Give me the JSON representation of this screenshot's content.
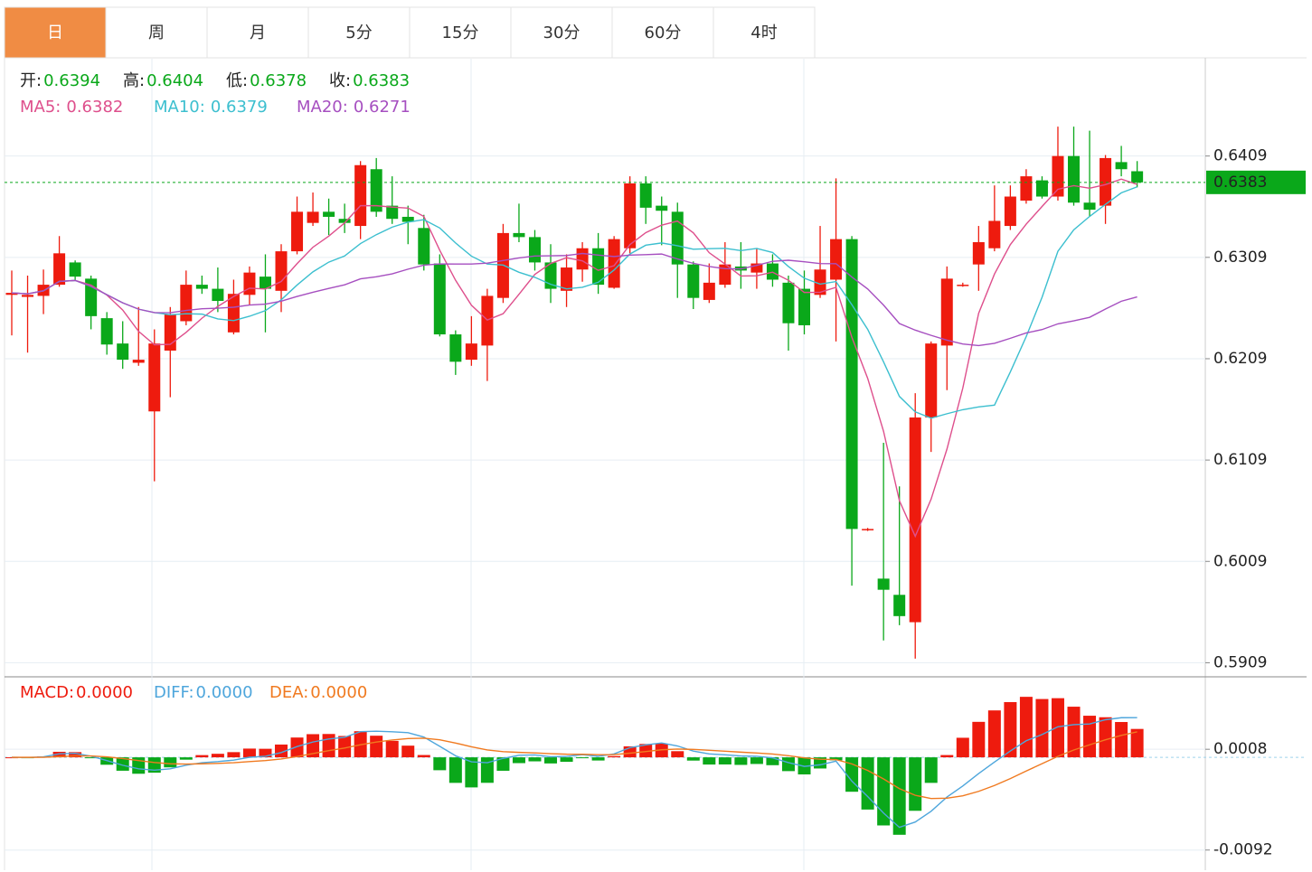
{
  "chart_data": {
    "type": "candlestick",
    "tabs": [
      "日",
      "周",
      "月",
      "5分",
      "15分",
      "30分",
      "60分",
      "4时"
    ],
    "ohlc_labels": [
      "开:",
      "高:",
      "低:",
      "收:"
    ],
    "up_color": "#ee1b0e",
    "down_color": "#0aa81a",
    "open": [
      0.6272,
      0.627,
      0.6271,
      0.6282,
      0.6304,
      0.6288,
      0.6249,
      0.6224,
      0.6205,
      0.6157,
      0.6217,
      0.6246,
      0.6282,
      0.6278,
      0.6235,
      0.6272,
      0.629,
      0.6276,
      0.6315,
      0.6343,
      0.6354,
      0.6347,
      0.634,
      0.6396,
      0.636,
      0.6349,
      0.6338,
      0.6303,
      0.6233,
      0.6208,
      0.6222,
      0.6269,
      0.6333,
      0.6329,
      0.6304,
      0.6276,
      0.6297,
      0.6318,
      0.6279,
      0.6318,
      0.6382,
      0.636,
      0.6354,
      0.6302,
      0.6267,
      0.6282,
      0.63,
      0.6294,
      0.6303,
      0.6284,
      0.6278,
      0.6272,
      0.6287,
      0.6327,
      0.604,
      0.5992,
      0.5976,
      0.5949,
      0.6151,
      0.6222,
      0.6281,
      0.6302,
      0.6318,
      0.634,
      0.6365,
      0.6385,
      0.6369,
      0.6409,
      0.6363,
      0.636,
      0.6403,
      0.6394
    ],
    "high": [
      0.6296,
      0.6291,
      0.6297,
      0.633,
      0.6306,
      0.6291,
      0.6255,
      0.6246,
      0.626,
      0.6238,
      0.626,
      0.6296,
      0.6291,
      0.6299,
      0.6287,
      0.63,
      0.6312,
      0.6322,
      0.6369,
      0.6373,
      0.6367,
      0.6362,
      0.6404,
      0.6407,
      0.6389,
      0.636,
      0.6351,
      0.6312,
      0.6237,
      0.6251,
      0.6278,
      0.6342,
      0.6362,
      0.6336,
      0.6322,
      0.6312,
      0.6324,
      0.6333,
      0.633,
      0.6389,
      0.6389,
      0.6369,
      0.6363,
      0.6305,
      0.6303,
      0.6324,
      0.6324,
      0.6318,
      0.6312,
      0.6291,
      0.6296,
      0.634,
      0.6387,
      0.633,
      0.6042,
      0.6126,
      0.6083,
      0.6175,
      0.6226,
      0.63,
      0.6284,
      0.634,
      0.638,
      0.638,
      0.6396,
      0.6389,
      0.6438,
      0.6438,
      0.6434,
      0.641,
      0.6419,
      0.6404
    ],
    "low": [
      0.6232,
      0.6215,
      0.6253,
      0.628,
      0.6286,
      0.6238,
      0.6213,
      0.6199,
      0.6202,
      0.6088,
      0.6171,
      0.6242,
      0.6273,
      0.6255,
      0.6233,
      0.6262,
      0.6235,
      0.6255,
      0.6312,
      0.634,
      0.6331,
      0.6333,
      0.6327,
      0.6349,
      0.6342,
      0.6322,
      0.6296,
      0.6231,
      0.6193,
      0.6202,
      0.6187,
      0.6264,
      0.6324,
      0.6296,
      0.6264,
      0.626,
      0.6285,
      0.6273,
      0.6278,
      0.6313,
      0.6342,
      0.6321,
      0.6269,
      0.6258,
      0.6264,
      0.6279,
      0.6278,
      0.6278,
      0.628,
      0.6217,
      0.6233,
      0.6269,
      0.6226,
      0.5985,
      0.6039,
      0.5931,
      0.5946,
      0.5913,
      0.6117,
      0.6178,
      0.628,
      0.6276,
      0.6315,
      0.6336,
      0.6362,
      0.6367,
      0.6365,
      0.636,
      0.6349,
      0.6342,
      0.6389,
      0.6378
    ],
    "close": [
      0.6274,
      0.6272,
      0.6282,
      0.6313,
      0.629,
      0.6251,
      0.6223,
      0.6208,
      0.6208,
      0.6224,
      0.6253,
      0.6282,
      0.6278,
      0.6266,
      0.6273,
      0.6294,
      0.6278,
      0.6315,
      0.6354,
      0.6354,
      0.6349,
      0.6343,
      0.64,
      0.6354,
      0.6347,
      0.6344,
      0.6302,
      0.6233,
      0.6206,
      0.6224,
      0.6271,
      0.6333,
      0.6329,
      0.6304,
      0.6278,
      0.6299,
      0.6318,
      0.6282,
      0.6327,
      0.6382,
      0.6358,
      0.6355,
      0.6302,
      0.6269,
      0.6284,
      0.6302,
      0.6296,
      0.6303,
      0.6287,
      0.6244,
      0.6242,
      0.6297,
      0.6327,
      0.6041,
      0.6041,
      0.5981,
      0.5955,
      0.6151,
      0.6224,
      0.6288,
      0.6282,
      0.6324,
      0.6345,
      0.6369,
      0.6389,
      0.6369,
      0.6409,
      0.6363,
      0.6356,
      0.6407,
      0.6396,
      0.6383
    ],
    "ma": [
      {
        "name": "MA5:",
        "color": "#de4f8c",
        "value": 0.6382
      },
      {
        "name": "MA10:",
        "color": "#3cbfcf",
        "value": 0.6379
      },
      {
        "name": "MA20:",
        "color": "#a64fc0",
        "value": 0.6271
      }
    ],
    "ylim": [
      0.5896,
      0.6505
    ],
    "yticks": [
      0.5909,
      0.6009,
      0.6109,
      0.6209,
      0.6309,
      0.6409
    ],
    "macd": {
      "ylim": [
        -0.0112,
        0.0079
      ],
      "yticks": [
        -0.0092,
        0.0008
      ],
      "labels": [
        {
          "name": "MACD:",
          "color": "#ee1b0e",
          "value": 0,
          "label": "0.0000"
        },
        {
          "name": "DIFF:",
          "color": "#4ea6dc",
          "value": 0,
          "label": "0.0000"
        },
        {
          "name": "DEA:",
          "color": "#f07a20",
          "value": 0,
          "label": "0.0000"
        }
      ]
    }
  }
}
